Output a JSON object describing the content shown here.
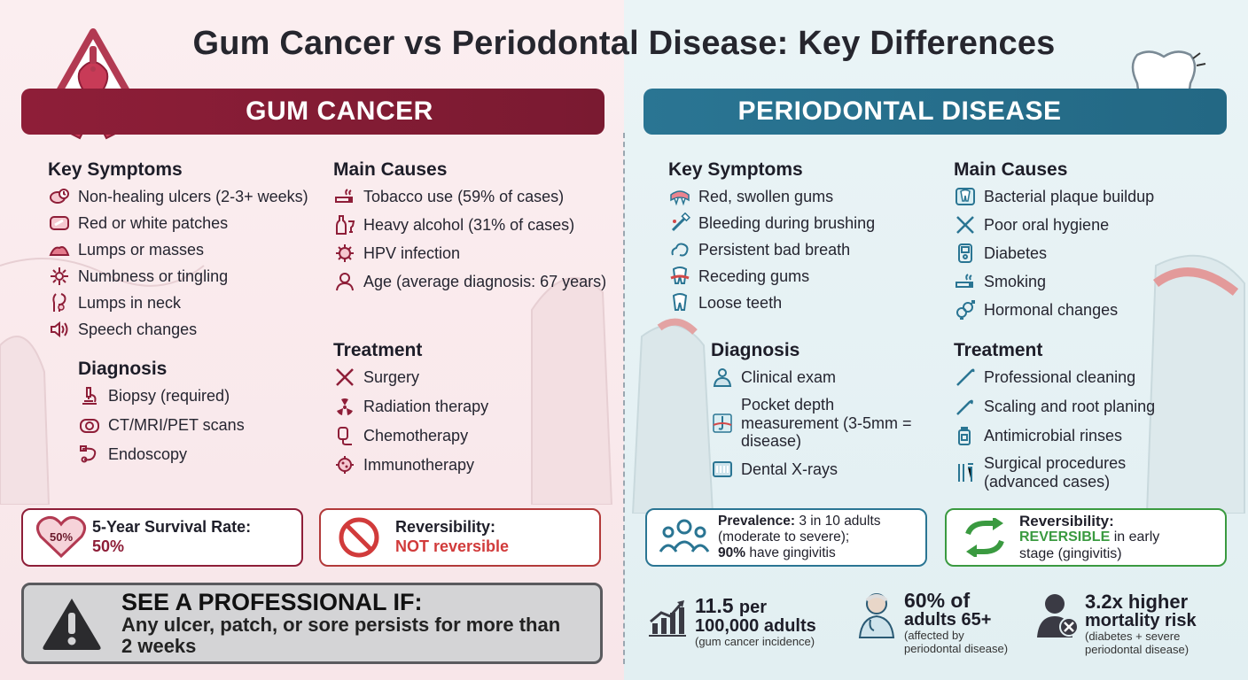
{
  "title": "Gum Cancer vs Periodontal Disease: Key Differences",
  "colors": {
    "cancer": "#8e1e38",
    "perio": "#2a7593",
    "green": "#3a9a40"
  },
  "cancer": {
    "banner": "GUM CANCER",
    "symptoms": {
      "heading": "Key Symptoms",
      "items": [
        {
          "icon": "ulcer-clock-icon",
          "label": "Non-healing ulcers (2-3+ weeks)"
        },
        {
          "icon": "patch-icon",
          "label": "Red or white patches"
        },
        {
          "icon": "lump-icon",
          "label": "Lumps or masses"
        },
        {
          "icon": "nerve-icon",
          "label": "Numbness or tingling"
        },
        {
          "icon": "neck-icon",
          "label": "Lumps in neck"
        },
        {
          "icon": "speaker-icon",
          "label": "Speech changes"
        }
      ]
    },
    "causes": {
      "heading": "Main Causes",
      "items": [
        {
          "icon": "cigarette-icon",
          "label": "Tobacco use (59% of cases)"
        },
        {
          "icon": "bottle-icon",
          "label": "Heavy alcohol (31% of cases)"
        },
        {
          "icon": "virus-icon",
          "label": "HPV infection"
        },
        {
          "icon": "elder-icon",
          "label": "Age (average diagnosis: 67 years)"
        }
      ]
    },
    "diagnosis": {
      "heading": "Diagnosis",
      "items": [
        {
          "icon": "microscope-icon",
          "label": "Biopsy (required)"
        },
        {
          "icon": "scanner-icon",
          "label": "CT/MRI/PET scans"
        },
        {
          "icon": "endoscope-icon",
          "label": "Endoscopy"
        }
      ]
    },
    "treatment": {
      "heading": "Treatment",
      "items": [
        {
          "icon": "scalpel-icon",
          "label": "Surgery"
        },
        {
          "icon": "radiation-icon",
          "label": "Radiation therapy"
        },
        {
          "icon": "iv-bag-icon",
          "label": "Chemotherapy"
        },
        {
          "icon": "cell-icon",
          "label": "Immunotherapy"
        }
      ]
    },
    "survival": {
      "badge": "50%",
      "label": "5-Year Survival Rate:",
      "value": "50%"
    },
    "reversibility": {
      "label": "Reversibility:",
      "value": "NOT reversible"
    },
    "professional": {
      "heading": "SEE A PROFESSIONAL IF:",
      "text": "Any ulcer, patch, or sore persists for more than 2 weeks"
    }
  },
  "perio": {
    "banner": "PERIODONTAL DISEASE",
    "symptoms": {
      "heading": "Key Symptoms",
      "items": [
        {
          "icon": "gums-icon",
          "label": "Red, swollen gums"
        },
        {
          "icon": "toothbrush-icon",
          "label": "Bleeding during brushing"
        },
        {
          "icon": "breath-icon",
          "label": "Persistent bad breath"
        },
        {
          "icon": "receding-icon",
          "label": "Receding gums"
        },
        {
          "icon": "loose-tooth-icon",
          "label": "Loose teeth"
        }
      ]
    },
    "causes": {
      "heading": "Main Causes",
      "items": [
        {
          "icon": "plaque-icon",
          "label": "Bacterial plaque buildup"
        },
        {
          "icon": "crossed-tools-icon",
          "label": "Poor oral hygiene"
        },
        {
          "icon": "glucometer-icon",
          "label": "Diabetes"
        },
        {
          "icon": "cigarette-icon",
          "label": "Smoking"
        },
        {
          "icon": "hormone-icon",
          "label": "Hormonal changes"
        }
      ]
    },
    "diagnosis": {
      "heading": "Diagnosis",
      "items": [
        {
          "icon": "dentist-icon",
          "label": "Clinical exam"
        },
        {
          "icon": "probe-icon",
          "label": "Pocket depth measurement (3-5mm = disease)"
        },
        {
          "icon": "xray-icon",
          "label": "Dental X-rays"
        }
      ]
    },
    "treatment": {
      "heading": "Treatment",
      "items": [
        {
          "icon": "cleaning-tool-icon",
          "label": "Professional cleaning"
        },
        {
          "icon": "scaler-icon",
          "label": "Scaling and root planing"
        },
        {
          "icon": "rinse-icon",
          "label": "Antimicrobial rinses"
        },
        {
          "icon": "surgical-tools-icon",
          "label": "Surgical procedures (advanced cases)"
        }
      ]
    },
    "prevalence": {
      "label": "Prevalence:",
      "text1": "3 in 10 adults",
      "text2": "(moderate to severe);",
      "strong": "90%",
      "text3": "have gingivitis"
    },
    "reversibility": {
      "label": "Reversibility:",
      "value": "REVERSIBLE",
      "rest1": "in early",
      "rest2": "stage (gingivitis)"
    },
    "stats": [
      {
        "icon": "chart-up-icon",
        "big1": "11.5",
        "big1b": "per",
        "big2": "100,000 adults",
        "small": "(gum cancer incidence)"
      },
      {
        "icon": "elderly-doctor-icon",
        "big1": "60% of",
        "big2": "adults 65+",
        "small1": "(affected by",
        "small2": "periodontal disease)"
      },
      {
        "icon": "person-x-icon",
        "big1": "3.2x higher",
        "big2": "mortality risk",
        "small1": "(diabetes + severe",
        "small2": "periodontal disease)"
      }
    ]
  }
}
